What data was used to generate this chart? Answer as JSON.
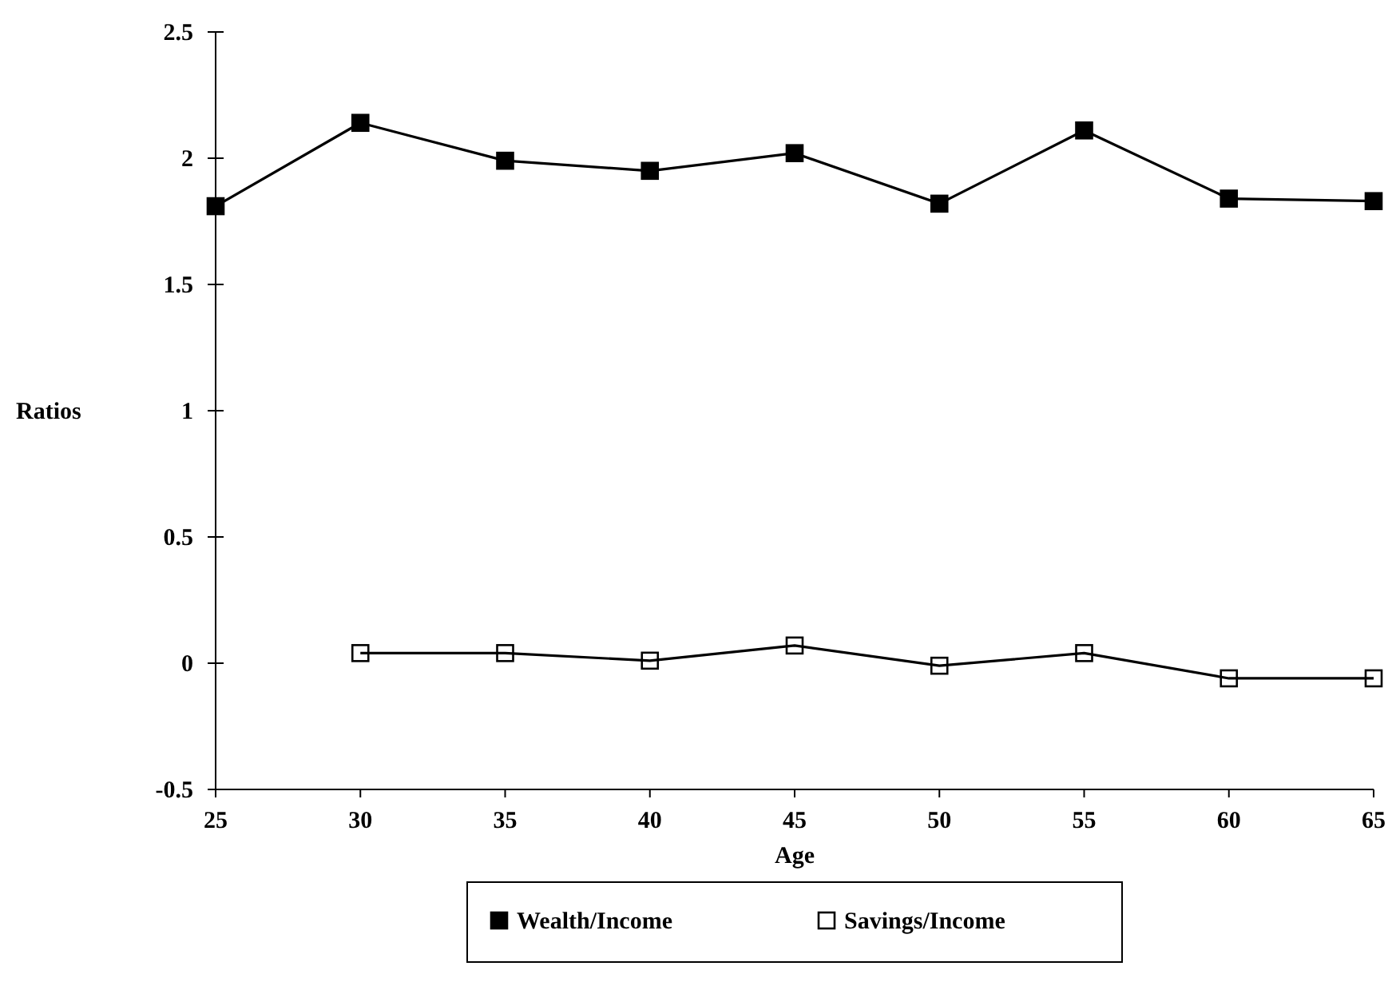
{
  "chart_data": {
    "type": "line",
    "xlabel": "Age",
    "ylabel": "Ratios",
    "x": [
      25,
      30,
      35,
      40,
      45,
      50,
      55,
      60,
      65
    ],
    "series": [
      {
        "name": "Wealth/Income",
        "color": "#000000",
        "values": [
          1.81,
          2.14,
          1.99,
          1.95,
          2.02,
          1.82,
          2.11,
          1.84,
          1.83
        ]
      },
      {
        "name": "Savings/Income",
        "color": "#000000",
        "values": [
          null,
          0.04,
          0.04,
          0.01,
          0.07,
          -0.01,
          0.04,
          -0.06,
          -0.06
        ]
      }
    ],
    "xlim": [
      25,
      65
    ],
    "xticks": [
      25,
      30,
      35,
      40,
      45,
      50,
      55,
      60,
      65
    ],
    "ylim": [
      -0.5,
      2.5
    ],
    "yticks": [
      -0.5,
      0,
      0.5,
      1,
      1.5,
      2,
      2.5
    ],
    "marker": "square",
    "legend": "bottom",
    "grid": false
  }
}
